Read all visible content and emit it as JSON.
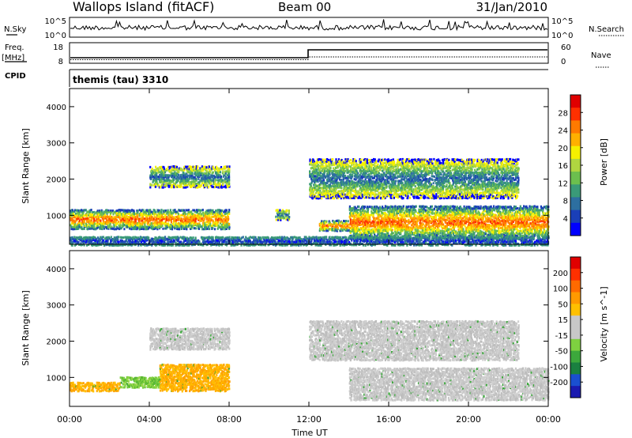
{
  "header": {
    "station": "Wallops Island (fitACF)",
    "beam": "Beam 00",
    "date": "31/Jan/2010"
  },
  "strip_nsky": {
    "left_label": "N.Sky",
    "right_label": "N.Search",
    "tick_top": "10^5",
    "tick_bottom": "10^0"
  },
  "strip_freq": {
    "left_label": "Freq.",
    "left_unit": "[MHz]",
    "right_label": "Nave",
    "left_ticks": [
      "18",
      "8"
    ],
    "right_ticks": [
      "60",
      "0"
    ]
  },
  "cpid": {
    "label": "CPID",
    "value": "themis (tau) 3310"
  },
  "chart_data": [
    {
      "type": "heatmap",
      "name": "Power",
      "ylabel": "Slant Range [km]",
      "ylim": [
        200,
        4500
      ],
      "yticks": [
        1000,
        2000,
        3000,
        4000
      ],
      "colorbar_label": "Power [dB]",
      "colorbar_ticks": [
        "28",
        "24",
        "20",
        "16",
        "12",
        "8",
        "4"
      ],
      "colorbar_colors": [
        "#0000ff",
        "#1a3fb8",
        "#2d6fa0",
        "#3a9a78",
        "#6cbf4e",
        "#b0d640",
        "#f5f000",
        "#ffb000",
        "#ff7a00",
        "#ff3000",
        "#e00000"
      ],
      "echo_regions": [
        {
          "t": [
            0.0,
            8.0
          ],
          "r": [
            650,
            1200
          ],
          "level": "high"
        },
        {
          "t": [
            4.0,
            8.0
          ],
          "r": [
            1800,
            2400
          ],
          "level": "mid"
        },
        {
          "t": [
            10.3,
            11.0
          ],
          "r": [
            900,
            1200
          ],
          "level": "mid"
        },
        {
          "t": [
            12.5,
            14.0
          ],
          "r": [
            600,
            900
          ],
          "level": "high"
        },
        {
          "t": [
            12.0,
            22.5
          ],
          "r": [
            1500,
            2600
          ],
          "level": "mid"
        },
        {
          "t": [
            14.0,
            24.0
          ],
          "r": [
            400,
            1300
          ],
          "level": "high"
        },
        {
          "t": [
            0.0,
            24.0
          ],
          "r": [
            200,
            450
          ],
          "level": "low"
        }
      ]
    },
    {
      "type": "heatmap",
      "name": "Velocity",
      "ylabel": "Slant Range [km]",
      "ylim": [
        200,
        4500
      ],
      "yticks": [
        1000,
        2000,
        3000,
        4000
      ],
      "colorbar_label": "Velocity [m s^-1]",
      "colorbar_ticks": [
        "200",
        "100",
        "50",
        "15",
        "-15",
        "-50",
        "-100",
        "-200"
      ],
      "colorbar_colors": [
        "#1a1ab0",
        "#1a4fd0",
        "#1a8040",
        "#3ca83c",
        "#7ed040",
        "#c8c8c8",
        "#c8c8c8",
        "#ffc000",
        "#ff9a00",
        "#ff6a00",
        "#ff3000",
        "#e00000"
      ],
      "echo_regions": [
        {
          "t": [
            0.0,
            2.5
          ],
          "r": [
            650,
            900
          ],
          "color": "orange"
        },
        {
          "t": [
            2.5,
            4.5
          ],
          "r": [
            750,
            1050
          ],
          "color": "green"
        },
        {
          "t": [
            4.5,
            8.0
          ],
          "r": [
            650,
            1400
          ],
          "color": "orange"
        },
        {
          "t": [
            4.0,
            8.0
          ],
          "r": [
            1800,
            2400
          ],
          "color": "gray"
        },
        {
          "t": [
            12.0,
            22.5
          ],
          "r": [
            1500,
            2600
          ],
          "color": "gray"
        },
        {
          "t": [
            14.0,
            24.0
          ],
          "r": [
            400,
            1300
          ],
          "color": "gray"
        }
      ],
      "xlabel": "Time UT",
      "xticks": [
        "00:00",
        "04:00",
        "08:00",
        "12:00",
        "16:00",
        "20:00",
        "00:00"
      ]
    }
  ]
}
